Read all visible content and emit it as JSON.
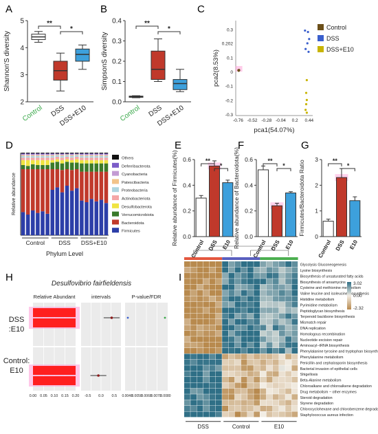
{
  "panels": {
    "A": "A",
    "B": "B",
    "C": "C",
    "D": "D",
    "E": "E",
    "F": "F",
    "G": "G",
    "H": "H",
    "I": "I"
  },
  "colors": {
    "control": "#6b4f1a",
    "dss": "#3a5fcd",
    "dss_e10": "#c8b400",
    "box_control": "#ffffff",
    "box_dss": "#c0392b",
    "box_e10": "#3da0dc",
    "highlight_pink": "#ff9ad5",
    "heat_low": "#2f6f86",
    "heat_mid": "#f2ede4",
    "heat_high": "#b88a4e"
  },
  "chart_data": [
    {
      "id": "A",
      "type": "box",
      "ylabel": "Shannon'S diversity",
      "ylim": [
        2,
        5
      ],
      "yticks": [
        "2",
        "3",
        "4",
        "5"
      ],
      "categories": [
        "Control",
        "DSS",
        "DSS+E10"
      ],
      "boxes": [
        {
          "min": 4.2,
          "q1": 4.3,
          "median": 4.4,
          "q3": 4.5,
          "max": 4.6
        },
        {
          "min": 2.4,
          "q1": 2.8,
          "median": 3.15,
          "q3": 3.5,
          "max": 3.8
        },
        {
          "min": 3.2,
          "q1": 3.5,
          "median": 3.75,
          "q3": 3.95,
          "max": 4.1
        }
      ],
      "significance": [
        "**",
        "*"
      ]
    },
    {
      "id": "B",
      "type": "box",
      "ylabel": "SimpsonS diversity",
      "ylim": [
        0,
        0.4
      ],
      "yticks": [
        "0.0",
        "0.1",
        "0.2",
        "0.3",
        "0.4"
      ],
      "categories": [
        "Control",
        "DSS",
        "DSS+E10"
      ],
      "boxes": [
        {
          "min": 0.02,
          "q1": 0.022,
          "median": 0.025,
          "q3": 0.028,
          "max": 0.03
        },
        {
          "min": 0.1,
          "q1": 0.11,
          "median": 0.16,
          "q3": 0.25,
          "max": 0.31
        },
        {
          "min": 0.05,
          "q1": 0.06,
          "median": 0.09,
          "q3": 0.11,
          "max": 0.16
        }
      ],
      "significance": [
        "**",
        "*"
      ]
    },
    {
      "id": "C",
      "type": "scatter",
      "xlabel": "pca1(54.07%)",
      "ylabel": "pca2(8.53%)",
      "xlim": [
        -0.8,
        0.5
      ],
      "ylim": [
        -0.31,
        0.36
      ],
      "xticks": [
        -0.76,
        -0.52,
        -0.28,
        -0.04,
        0.2,
        0.44
      ],
      "xtick_labels": [
        "-0.76",
        "-0.52",
        "-0.28",
        "-0.04",
        "0.2",
        "0.44"
      ],
      "yticks": [
        0.3,
        0.202,
        0.1,
        0,
        -0.1,
        -0.2,
        -0.3
      ],
      "ytick_labels": [
        "0.3",
        "0.202",
        "0.1",
        "0",
        "-0.1",
        "-0.2",
        "-0.3"
      ],
      "series": [
        {
          "name": "Control",
          "points": [
            [
              -0.755,
              0.01
            ],
            [
              -0.745,
              0.012
            ],
            [
              -0.75,
              0.006
            ],
            [
              -0.742,
              0.009
            ]
          ]
        },
        {
          "name": "DSS",
          "points": [
            [
              0.37,
              0.29
            ],
            [
              0.42,
              0.28
            ],
            [
              0.44,
              0.23
            ],
            [
              0.41,
              0.2
            ],
            [
              0.38,
              0.16
            ],
            [
              0.43,
              0.14
            ]
          ]
        },
        {
          "name": "DSS+E10",
          "points": [
            [
              0.4,
              -0.06
            ],
            [
              0.39,
              -0.15
            ],
            [
              0.4,
              -0.2
            ],
            [
              0.39,
              -0.23
            ],
            [
              0.38,
              -0.27
            ],
            [
              0.4,
              -0.29
            ]
          ]
        }
      ]
    },
    {
      "id": "D",
      "type": "stacked-bar",
      "ylabel": "Relative abundance",
      "xlabel": "Phylum  Level",
      "groups": [
        "Control",
        "DSS",
        "DSS+E10"
      ],
      "legend": [
        "Others",
        "Deferribacterota",
        "Cyanobacteria",
        "Patescibacteria",
        "Proteobacteria",
        "Actinobacteriota",
        "Desulfobacterota",
        "Verrucomicrobiota",
        "Bacteroidota",
        "Firmicutes"
      ],
      "legend_colors": [
        "#111111",
        "#7b5cc8",
        "#c39bd3",
        "#f2c48a",
        "#aed6e0",
        "#f4a7a7",
        "#f0e442",
        "#3a7a2a",
        "#c0392b",
        "#2c3ea8"
      ],
      "samples": [
        {
          "group": "Control",
          "Firmicutes": 0.28,
          "Bacteroidota": 0.52,
          "Verrucomicrobiota": 0.05,
          "Desulfobacterota": 0.06,
          "Actinobacteriota": 0.03,
          "Proteobacteria": 0.02,
          "Patescibacteria": 0.01,
          "Cyanobacteria": 0.01,
          "Deferribacterota": 0.01,
          "Others": 0.01
        },
        {
          "group": "Control",
          "Firmicutes": 0.25,
          "Bacteroidota": 0.55,
          "Verrucomicrobiota": 0.04,
          "Desulfobacterota": 0.07,
          "Actinobacteriota": 0.03,
          "Proteobacteria": 0.02,
          "Patescibacteria": 0.01,
          "Cyanobacteria": 0.01,
          "Deferribacterota": 0.01,
          "Others": 0.01
        },
        {
          "group": "Control",
          "Firmicutes": 0.3,
          "Bacteroidota": 0.5,
          "Verrucomicrobiota": 0.06,
          "Desulfobacterota": 0.05,
          "Actinobacteriota": 0.03,
          "Proteobacteria": 0.02,
          "Patescibacteria": 0.01,
          "Cyanobacteria": 0.01,
          "Deferribacterota": 0.01,
          "Others": 0.01
        },
        {
          "group": "Control",
          "Firmicutes": 0.27,
          "Bacteroidota": 0.53,
          "Verrucomicrobiota": 0.05,
          "Desulfobacterota": 0.06,
          "Actinobacteriota": 0.03,
          "Proteobacteria": 0.02,
          "Patescibacteria": 0.01,
          "Cyanobacteria": 0.01,
          "Deferribacterota": 0.01,
          "Others": 0.01
        },
        {
          "group": "Control",
          "Firmicutes": 0.29,
          "Bacteroidota": 0.51,
          "Verrucomicrobiota": 0.05,
          "Desulfobacterota": 0.06,
          "Actinobacteriota": 0.03,
          "Proteobacteria": 0.02,
          "Patescibacteria": 0.01,
          "Cyanobacteria": 0.01,
          "Deferribacterota": 0.01,
          "Others": 0.01
        },
        {
          "group": "Control",
          "Firmicutes": 0.26,
          "Bacteroidota": 0.54,
          "Verrucomicrobiota": 0.05,
          "Desulfobacterota": 0.06,
          "Actinobacteriota": 0.03,
          "Proteobacteria": 0.02,
          "Patescibacteria": 0.01,
          "Cyanobacteria": 0.01,
          "Deferribacterota": 0.01,
          "Others": 0.01
        },
        {
          "group": "DSS",
          "Firmicutes": 0.55,
          "Bacteroidota": 0.25,
          "Verrucomicrobiota": 0.08,
          "Desulfobacterota": 0.03,
          "Actinobacteriota": 0.03,
          "Proteobacteria": 0.02,
          "Patescibacteria": 0.01,
          "Cyanobacteria": 0.01,
          "Deferribacterota": 0.01,
          "Others": 0.01
        },
        {
          "group": "DSS",
          "Firmicutes": 0.58,
          "Bacteroidota": 0.22,
          "Verrucomicrobiota": 0.09,
          "Desulfobacterota": 0.03,
          "Actinobacteriota": 0.03,
          "Proteobacteria": 0.02,
          "Patescibacteria": 0.01,
          "Cyanobacteria": 0.0,
          "Deferribacterota": 0.01,
          "Others": 0.01
        },
        {
          "group": "DSS",
          "Firmicutes": 0.52,
          "Bacteroidota": 0.27,
          "Verrucomicrobiota": 0.08,
          "Desulfobacterota": 0.04,
          "Actinobacteriota": 0.03,
          "Proteobacteria": 0.02,
          "Patescibacteria": 0.01,
          "Cyanobacteria": 0.01,
          "Deferribacterota": 0.01,
          "Others": 0.01
        },
        {
          "group": "DSS",
          "Firmicutes": 0.6,
          "Bacteroidota": 0.2,
          "Verrucomicrobiota": 0.09,
          "Desulfobacterota": 0.03,
          "Actinobacteriota": 0.03,
          "Proteobacteria": 0.02,
          "Patescibacteria": 0.01,
          "Cyanobacteria": 0.0,
          "Deferribacterota": 0.01,
          "Others": 0.01
        },
        {
          "group": "DSS",
          "Firmicutes": 0.54,
          "Bacteroidota": 0.25,
          "Verrucomicrobiota": 0.09,
          "Desulfobacterota": 0.03,
          "Actinobacteriota": 0.03,
          "Proteobacteria": 0.02,
          "Patescibacteria": 0.01,
          "Cyanobacteria": 0.01,
          "Deferribacterota": 0.01,
          "Others": 0.01
        },
        {
          "group": "DSS",
          "Firmicutes": 0.57,
          "Bacteroidota": 0.23,
          "Verrucomicrobiota": 0.08,
          "Desulfobacterota": 0.04,
          "Actinobacteriota": 0.03,
          "Proteobacteria": 0.02,
          "Patescibacteria": 0.01,
          "Cyanobacteria": 0.0,
          "Deferribacterota": 0.01,
          "Others": 0.01
        },
        {
          "group": "DSS+E10",
          "Firmicutes": 0.42,
          "Bacteroidota": 0.35,
          "Verrucomicrobiota": 0.1,
          "Desulfobacterota": 0.04,
          "Actinobacteriota": 0.03,
          "Proteobacteria": 0.02,
          "Patescibacteria": 0.01,
          "Cyanobacteria": 0.01,
          "Deferribacterota": 0.01,
          "Others": 0.01
        },
        {
          "group": "DSS+E10",
          "Firmicutes": 0.4,
          "Bacteroidota": 0.37,
          "Verrucomicrobiota": 0.1,
          "Desulfobacterota": 0.04,
          "Actinobacteriota": 0.03,
          "Proteobacteria": 0.02,
          "Patescibacteria": 0.01,
          "Cyanobacteria": 0.01,
          "Deferribacterota": 0.01,
          "Others": 0.01
        },
        {
          "group": "DSS+E10",
          "Firmicutes": 0.44,
          "Bacteroidota": 0.33,
          "Verrucomicrobiota": 0.1,
          "Desulfobacterota": 0.04,
          "Actinobacteriota": 0.03,
          "Proteobacteria": 0.02,
          "Patescibacteria": 0.01,
          "Cyanobacteria": 0.01,
          "Deferribacterota": 0.01,
          "Others": 0.01
        },
        {
          "group": "DSS+E10",
          "Firmicutes": 0.41,
          "Bacteroidota": 0.36,
          "Verrucomicrobiota": 0.1,
          "Desulfobacterota": 0.04,
          "Actinobacteriota": 0.03,
          "Proteobacteria": 0.02,
          "Patescibacteria": 0.01,
          "Cyanobacteria": 0.01,
          "Deferribacterota": 0.01,
          "Others": 0.01
        },
        {
          "group": "DSS+E10",
          "Firmicutes": 0.43,
          "Bacteroidota": 0.34,
          "Verrucomicrobiota": 0.1,
          "Desulfobacterota": 0.04,
          "Actinobacteriota": 0.03,
          "Proteobacteria": 0.02,
          "Patescibacteria": 0.01,
          "Cyanobacteria": 0.01,
          "Deferribacterota": 0.01,
          "Others": 0.01
        },
        {
          "group": "DSS+E10",
          "Firmicutes": 0.39,
          "Bacteroidota": 0.38,
          "Verrucomicrobiota": 0.1,
          "Desulfobacterota": 0.04,
          "Actinobacteriota": 0.03,
          "Proteobacteria": 0.02,
          "Patescibacteria": 0.01,
          "Cyanobacteria": 0.01,
          "Deferribacterota": 0.01,
          "Others": 0.01
        }
      ]
    },
    {
      "id": "E",
      "type": "bar",
      "ylabel": "Relative abundance of Firmicutes(%)",
      "ylim": [
        0,
        0.6
      ],
      "yticks": [
        "0.0",
        "0.2",
        "0.4",
        "0.6"
      ],
      "categories": [
        "Control",
        "DSS",
        "E10"
      ],
      "values": [
        0.3,
        0.55,
        0.42
      ],
      "errors": [
        0.02,
        0.04,
        0.02
      ],
      "significance": [
        "**",
        "*"
      ]
    },
    {
      "id": "F",
      "type": "bar",
      "ylabel": "Relative abundance of Bacteroidota(%)",
      "ylim": [
        0,
        0.6
      ],
      "yticks": [
        "0.0",
        "0.2",
        "0.4",
        "0.6"
      ],
      "categories": [
        "Control",
        "DSS",
        "E10"
      ],
      "values": [
        0.52,
        0.24,
        0.34
      ],
      "errors": [
        0.03,
        0.02,
        0.01
      ],
      "significance": [
        "**",
        "*"
      ]
    },
    {
      "id": "G",
      "type": "bar",
      "ylabel": "Firmicutes/Bacteroidota Ratio",
      "ylim": [
        0,
        3
      ],
      "yticks": [
        "0",
        "1",
        "2",
        "3"
      ],
      "categories": [
        "Control",
        "DSS",
        "E10"
      ],
      "values": [
        0.6,
        2.3,
        1.4
      ],
      "errors": [
        0.08,
        0.35,
        0.15
      ],
      "significance": [
        "**",
        "*"
      ]
    },
    {
      "id": "H",
      "type": "difference-plot",
      "title": "Desulfovibrio fairfieldensis",
      "column_headers": [
        "Relative Abundant",
        "intervals",
        "P-value/FDR"
      ],
      "rows": [
        "DSS :E10",
        "Control: E10"
      ],
      "abundance_ticks": [
        "0.00",
        "0.05",
        "0.10",
        "0.15",
        "0.20"
      ],
      "interval_ticks": [
        "-0.5",
        "0.0",
        "0.5"
      ],
      "pvalue_ticks": [
        "0.0040",
        "0.0050",
        "0.0060",
        "0.0070",
        "0.0080"
      ],
      "bars": [
        {
          "row": "DSS :E10",
          "values": [
            0.2,
            0.2
          ]
        },
        {
          "row": "Control: E10",
          "values": [
            0.2,
            0.2
          ]
        }
      ],
      "intervals": [
        {
          "row": "DSS :E10",
          "estimate": 0.4,
          "low": 0.1,
          "high": 0.7
        },
        {
          "row": "Control: E10",
          "estimate": -0.1,
          "low": -0.4,
          "high": 0.2
        }
      ]
    },
    {
      "id": "I",
      "type": "heatmap",
      "groups": [
        "DSS",
        "Control",
        "E10"
      ],
      "columns": 18,
      "scale": [
        "3.02",
        "0.00",
        "-2.32"
      ],
      "rows": [
        "Glycolysis Gluconeogenesis",
        "Lysine biosynthesis",
        "Biosynthesis of unsaturated fatty acids",
        "Biosynthesis of ansamycins",
        "Cysteine and methionine metabolism",
        "Valine leucine and isoleucine biosynthesis",
        "Histidine metabolism",
        "Pyrimidine metabolism",
        "Peptidoglycan biosynthesis",
        "Terpenoid backbone biosynthesis",
        "Mismatch repair",
        "DNA replication",
        "Homologous recombination",
        "Nucleotide excision repair",
        "Aminoacyl−tRNA biosynthesis",
        "Phenylalanine tyrosine and tryptophan biosynthesis",
        "Phenylalanine metabolism",
        "Penicillin and cephalosporin biosynthesis",
        "Bacterial invasion of epithelial cells",
        "Shigellosis",
        "Beta-Alanine metabolism",
        "Chloroalkane and chloroalkene degradation",
        "Drug metabolism − other enzymes",
        "Steroid degradation",
        "Styrene degradation",
        "Chlorocyclohexane and chlorobenzene degradation",
        "Staphylococcus aureus infection"
      ]
    }
  ]
}
